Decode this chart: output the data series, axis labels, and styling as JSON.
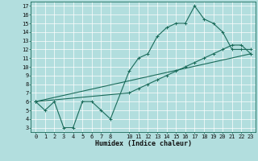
{
  "xlabel": "Humidex (Indice chaleur)",
  "bg_color": "#b2dede",
  "grid_color": "#ffffff",
  "line_color": "#1a6b5a",
  "xlim": [
    -0.5,
    23.5
  ],
  "ylim": [
    2.5,
    17.5
  ],
  "xticks": [
    0,
    1,
    2,
    3,
    4,
    5,
    6,
    7,
    8,
    10,
    11,
    12,
    13,
    14,
    15,
    16,
    17,
    18,
    19,
    20,
    21,
    22,
    23
  ],
  "yticks": [
    3,
    4,
    5,
    6,
    7,
    8,
    9,
    10,
    11,
    12,
    13,
    14,
    15,
    16,
    17
  ],
  "line1_x": [
    0,
    1,
    2,
    3,
    4,
    5,
    6,
    7,
    8,
    10,
    11,
    12,
    13,
    14,
    15,
    16,
    17,
    18,
    19,
    20,
    21,
    22,
    23
  ],
  "line1_y": [
    6,
    5,
    6,
    3,
    3,
    6,
    6,
    5,
    4,
    9.5,
    11,
    11.5,
    13.5,
    14.5,
    15,
    15,
    17,
    15.5,
    15,
    14,
    12,
    12,
    12
  ],
  "line2_x": [
    0,
    10,
    11,
    12,
    13,
    14,
    15,
    16,
    17,
    18,
    19,
    20,
    21,
    22,
    23
  ],
  "line2_y": [
    6,
    7,
    7.5,
    8,
    8.5,
    9,
    9.5,
    10,
    10.5,
    11,
    11.5,
    12,
    12.5,
    12.5,
    11.5
  ],
  "line3_x": [
    0,
    23
  ],
  "line3_y": [
    6,
    11.5
  ],
  "tick_fontsize": 5,
  "xlabel_fontsize": 6,
  "linewidth": 0.8,
  "markersize": 2.5
}
